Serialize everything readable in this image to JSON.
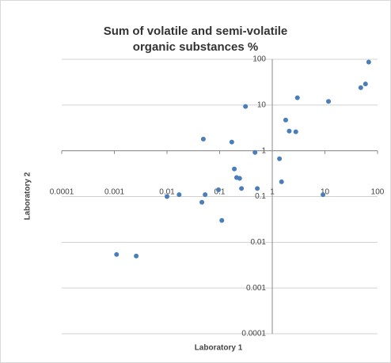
{
  "chart_data": {
    "type": "scatter",
    "title": "Sum of volatile and semi-volatile organic substances %",
    "x_label": "Laboratory 1",
    "y_label": "Laboratory 2",
    "x_log": true,
    "y_log": true,
    "grid": true,
    "color": "#4a7ebb",
    "xlim": [
      0.0001,
      100
    ],
    "ylim": [
      0.0001,
      100
    ],
    "xticks": [
      0.0001,
      0.001,
      0.01,
      0.1,
      1,
      10,
      100
    ],
    "yticks": [
      0.0001,
      0.001,
      0.01,
      0.1,
      1,
      10,
      100
    ],
    "x": [
      68,
      59,
      48,
      11.7,
      3.0,
      1.8,
      2.1,
      2.8,
      0.31,
      0.17,
      0.049,
      0.47,
      1.37,
      1.5,
      9.2,
      0.52,
      0.19,
      0.21,
      0.24,
      0.26,
      0.095,
      0.053,
      0.046,
      0.017,
      0.01,
      0.11,
      0.0011,
      0.0026
    ],
    "y": [
      87,
      29,
      24,
      12,
      14.4,
      4.7,
      2.7,
      2.6,
      9.3,
      1.55,
      1.8,
      0.92,
      0.67,
      0.21,
      0.11,
      0.15,
      0.4,
      0.26,
      0.25,
      0.15,
      0.14,
      0.11,
      0.075,
      0.11,
      0.1,
      0.03,
      0.0054,
      0.005
    ]
  }
}
